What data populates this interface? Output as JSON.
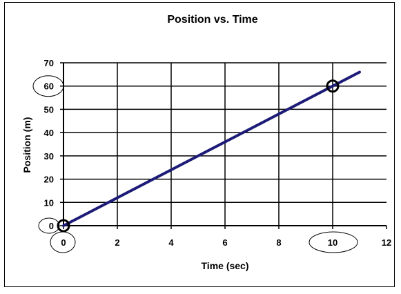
{
  "chart_data": {
    "type": "line",
    "title": "Position vs. Time",
    "xlabel": "Time (sec)",
    "ylabel": "Position (m)",
    "xlim": [
      0,
      12
    ],
    "ylim": [
      0,
      70
    ],
    "x_ticks": [
      0,
      2,
      4,
      6,
      8,
      10,
      12
    ],
    "y_ticks": [
      0,
      10,
      20,
      30,
      40,
      50,
      60,
      70
    ],
    "grid": true,
    "legend": false,
    "series": [
      {
        "x": [
          0,
          11
        ],
        "y": [
          0,
          66
        ],
        "color": "#1c1c78"
      }
    ],
    "highlighted_points": [
      {
        "x": 0,
        "y": 0
      },
      {
        "x": 10,
        "y": 60
      }
    ],
    "circled_ticks": {
      "x": [
        0,
        10
      ],
      "y": [
        0,
        60
      ]
    }
  }
}
